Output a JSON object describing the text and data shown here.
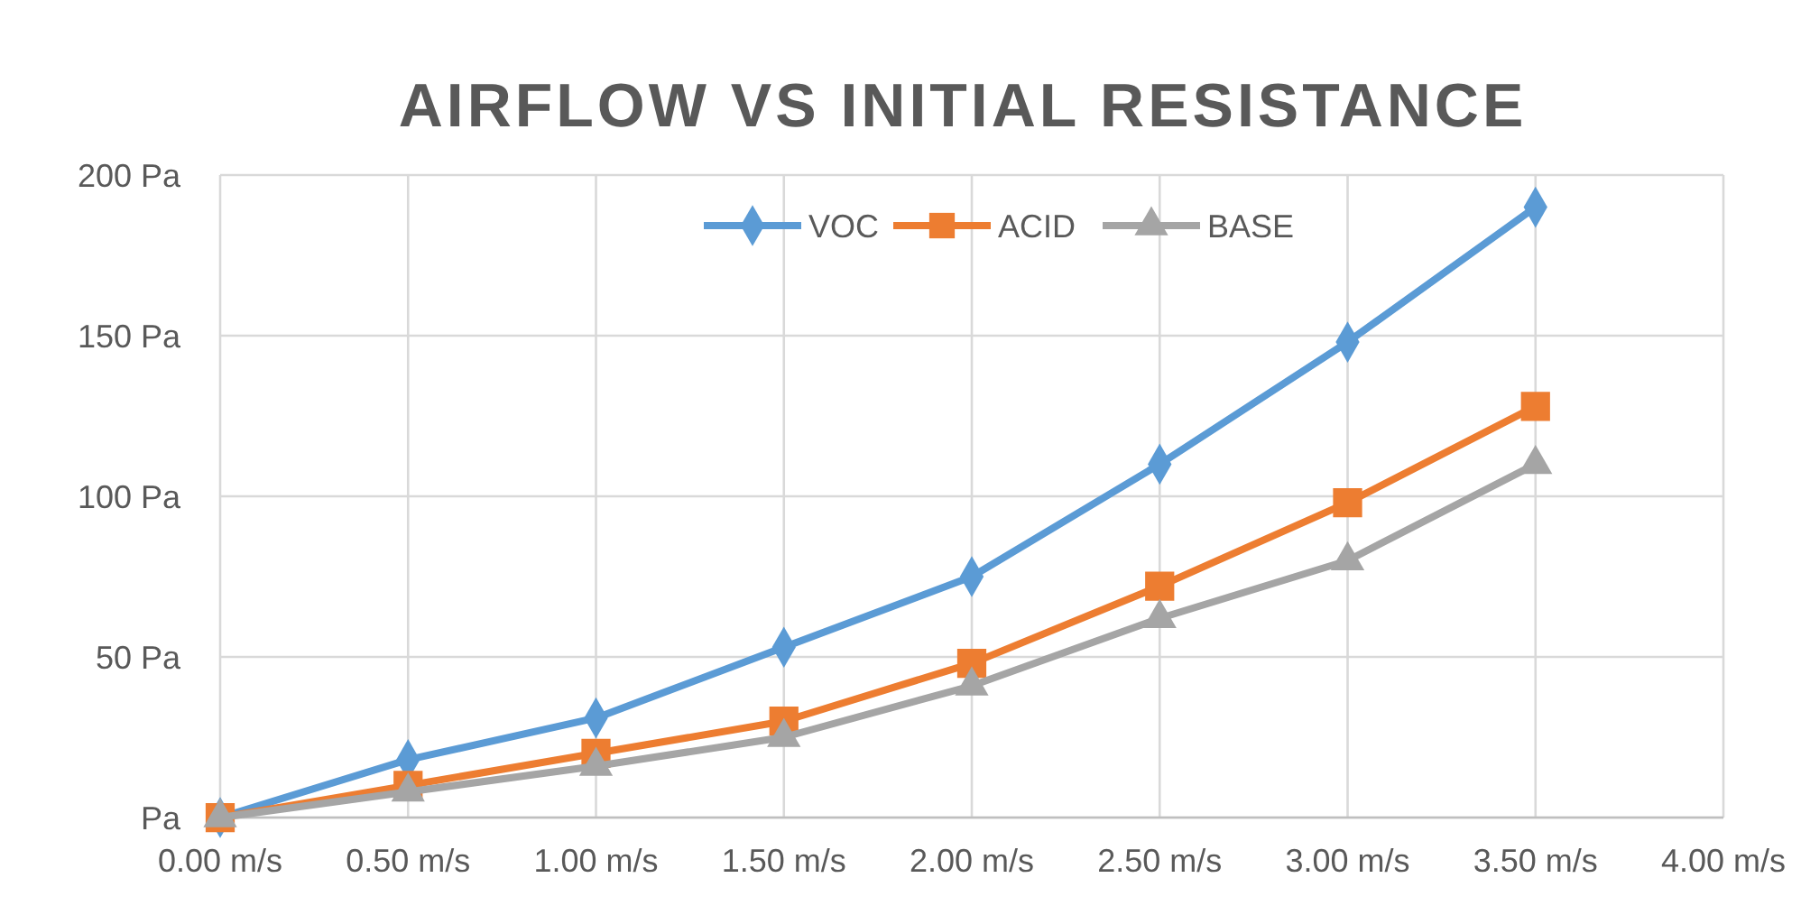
{
  "chart_data": {
    "type": "line",
    "title": "AIRFLOW VS INITIAL RESISTANCE",
    "x": [
      0,
      0.5,
      1,
      1.5,
      2,
      2.5,
      3,
      3.5
    ],
    "series": [
      {
        "name": "VOC",
        "color": "#5b9bd5",
        "marker": "diamond",
        "values": [
          0,
          18,
          31,
          53,
          75,
          110,
          148,
          190
        ]
      },
      {
        "name": "ACID",
        "color": "#ed7d31",
        "marker": "square",
        "values": [
          0,
          10,
          20,
          30,
          48,
          72,
          98,
          128
        ]
      },
      {
        "name": "BASE",
        "color": "#a5a5a5",
        "marker": "triangle",
        "values": [
          0,
          8,
          16,
          25,
          41,
          62,
          80,
          110
        ]
      }
    ],
    "xlim": [
      0,
      4
    ],
    "xticks": [
      {
        "value": 0,
        "label": "0.00 m/s"
      },
      {
        "value": 0.5,
        "label": "0.50 m/s"
      },
      {
        "value": 1,
        "label": "1.00 m/s"
      },
      {
        "value": 1.5,
        "label": "1.50 m/s"
      },
      {
        "value": 2,
        "label": "2.00 m/s"
      },
      {
        "value": 2.5,
        "label": "2.50 m/s"
      },
      {
        "value": 3,
        "label": "3.00 m/s"
      },
      {
        "value": 3.5,
        "label": "3.50 m/s"
      },
      {
        "value": 4,
        "label": "4.00 m/s"
      }
    ],
    "ylim": [
      0,
      200
    ],
    "yticks": [
      {
        "value": 0,
        "label": "Pa"
      },
      {
        "value": 50,
        "label": "50 Pa"
      },
      {
        "value": 100,
        "label": "100 Pa"
      },
      {
        "value": 150,
        "label": "150 Pa"
      },
      {
        "value": 200,
        "label": "200 Pa"
      }
    ],
    "grid": true,
    "legend": "top",
    "line_style": "solid"
  }
}
